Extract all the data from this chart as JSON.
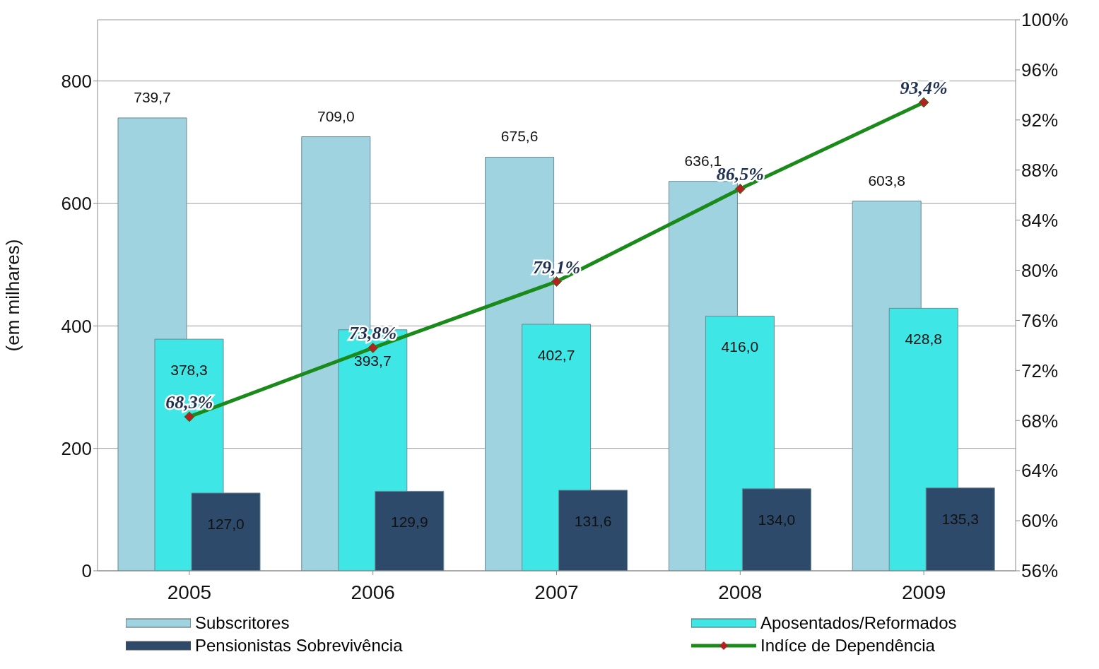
{
  "chart_data": {
    "type": "bar",
    "categories": [
      "2005",
      "2006",
      "2007",
      "2008",
      "2009"
    ],
    "ylabel": "(em milhares)",
    "ylim": [
      0,
      900
    ],
    "yticks": [
      0,
      200,
      400,
      600,
      800
    ],
    "y2lim": [
      56,
      100
    ],
    "y2ticks": [
      {
        "value": 56,
        "label": "56%"
      },
      {
        "value": 60,
        "label": "60%"
      },
      {
        "value": 64,
        "label": "64%"
      },
      {
        "value": 68,
        "label": "68%"
      },
      {
        "value": 72,
        "label": "72%"
      },
      {
        "value": 76,
        "label": "76%"
      },
      {
        "value": 80,
        "label": "80%"
      },
      {
        "value": 84,
        "label": "84%"
      },
      {
        "value": 88,
        "label": "88%"
      },
      {
        "value": 92,
        "label": "92%"
      },
      {
        "value": 96,
        "label": "96%"
      },
      {
        "value": 100,
        "label": "100%"
      }
    ],
    "grid": "y",
    "legend": "bottom",
    "marker": "diamond",
    "series": [
      {
        "name": "Subscritores",
        "color": "#9fd3e0",
        "values": [
          739.7,
          709.0,
          675.6,
          636.1,
          603.8
        ],
        "value_labels": [
          "739,7",
          "709,0",
          "675,6",
          "636,1",
          "603,8"
        ]
      },
      {
        "name": "Aposentados/Reformados",
        "color": "#3fe6e6",
        "values": [
          378.3,
          393.7,
          402.7,
          416.0,
          428.8
        ],
        "value_labels": [
          "378,3",
          "393,7",
          "402,7",
          "416,0",
          "428,8"
        ]
      },
      {
        "name": "Pensionistas Sobrevivência",
        "color": "#2e4a6a",
        "values": [
          127.0,
          129.9,
          131.6,
          134.0,
          135.3
        ],
        "value_labels": [
          "127,0",
          "129,9",
          "131,6",
          "134,0",
          "135,3"
        ]
      },
      {
        "name": "Indíce de Dependência",
        "type": "line",
        "axis": "y2",
        "color": "#1a8a1a",
        "values": [
          68.3,
          73.8,
          79.1,
          86.5,
          93.4
        ],
        "value_labels": [
          "68,3%",
          "73,8%",
          "79,1%",
          "86,5%",
          "93,4%"
        ]
      }
    ]
  }
}
